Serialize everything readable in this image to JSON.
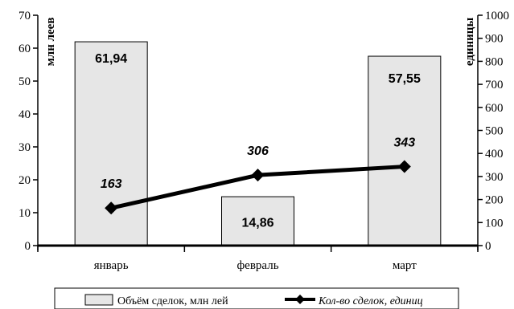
{
  "chart_data": {
    "type": "bar",
    "title": "",
    "categories": [
      "январь",
      "февраль",
      "март"
    ],
    "series": [
      {
        "name": "Объём сделок, млн лей",
        "type": "bar",
        "axis": "left",
        "values": [
          61.94,
          14.86,
          57.55
        ],
        "labels": [
          "61,94",
          "14,86",
          "57,55"
        ],
        "color": "#e6e6e6"
      },
      {
        "name": "Кол-во сделок, единиц",
        "type": "line",
        "axis": "right",
        "values": [
          163,
          306,
          343
        ],
        "labels": [
          "163",
          "306",
          "343"
        ],
        "color": "#000000"
      }
    ],
    "ylabel": "млн леев",
    "y2label": "единицы",
    "ylim": [
      0,
      70
    ],
    "y2lim": [
      0,
      1000
    ],
    "yticks": [
      0,
      10,
      20,
      30,
      40,
      50,
      60,
      70
    ],
    "y2ticks": [
      0,
      100,
      200,
      300,
      400,
      500,
      600,
      700,
      800,
      900,
      1000
    ],
    "grid": false,
    "legend_position": "bottom"
  }
}
